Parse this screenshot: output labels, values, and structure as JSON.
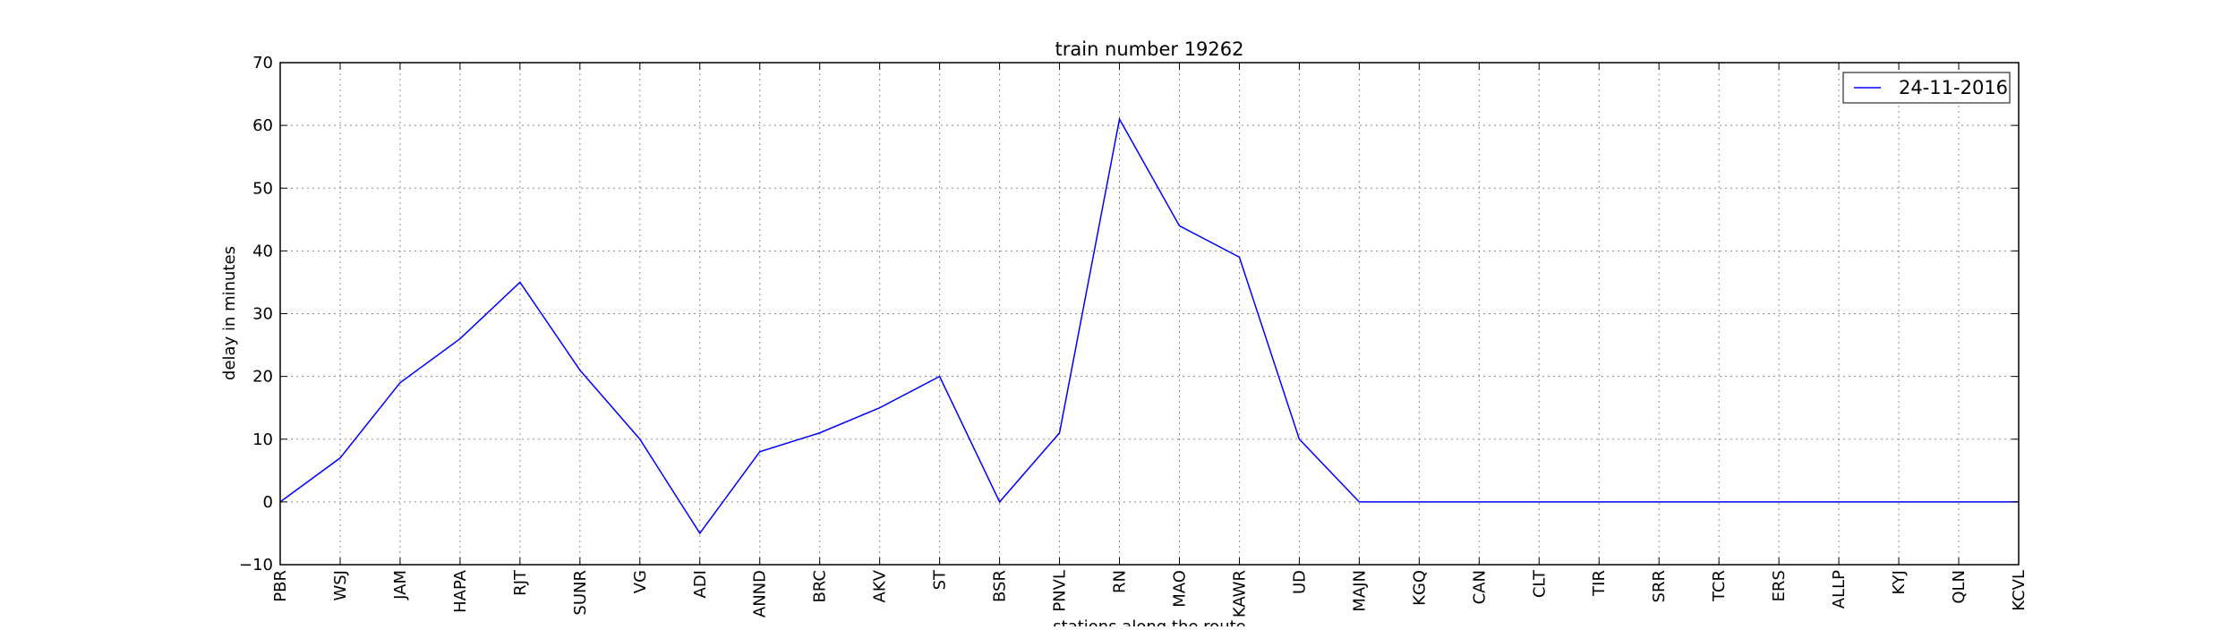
{
  "chart_data": {
    "type": "line",
    "title": "train number 19262",
    "xlabel": "stations along the route",
    "ylabel": "delay in minutes",
    "ylim": [
      -10,
      70
    ],
    "yticks": [
      -10,
      0,
      10,
      20,
      30,
      40,
      50,
      60,
      70
    ],
    "grid": true,
    "legend_position": "top-right",
    "categories": [
      "PBR",
      "WSJ",
      "JAM",
      "HAPA",
      "RJT",
      "SUNR",
      "VG",
      "ADI",
      "ANND",
      "BRC",
      "AKV",
      "ST",
      "BSR",
      "PNVL",
      "RN",
      "MAO",
      "KAWR",
      "UD",
      "MAJN",
      "KGQ",
      "CAN",
      "CLT",
      "TIR",
      "SRR",
      "TCR",
      "ERS",
      "ALLP",
      "KYJ",
      "QLN",
      "KCVL"
    ],
    "series": [
      {
        "name": "24-11-2016",
        "color": "#0000ff",
        "values": [
          0,
          7,
          19,
          26,
          35,
          21,
          10,
          -5,
          8,
          11,
          15,
          20,
          0,
          11,
          61,
          44,
          39,
          10,
          0,
          0,
          0,
          0,
          0,
          0,
          0,
          0,
          0,
          0,
          0,
          0
        ]
      }
    ]
  }
}
